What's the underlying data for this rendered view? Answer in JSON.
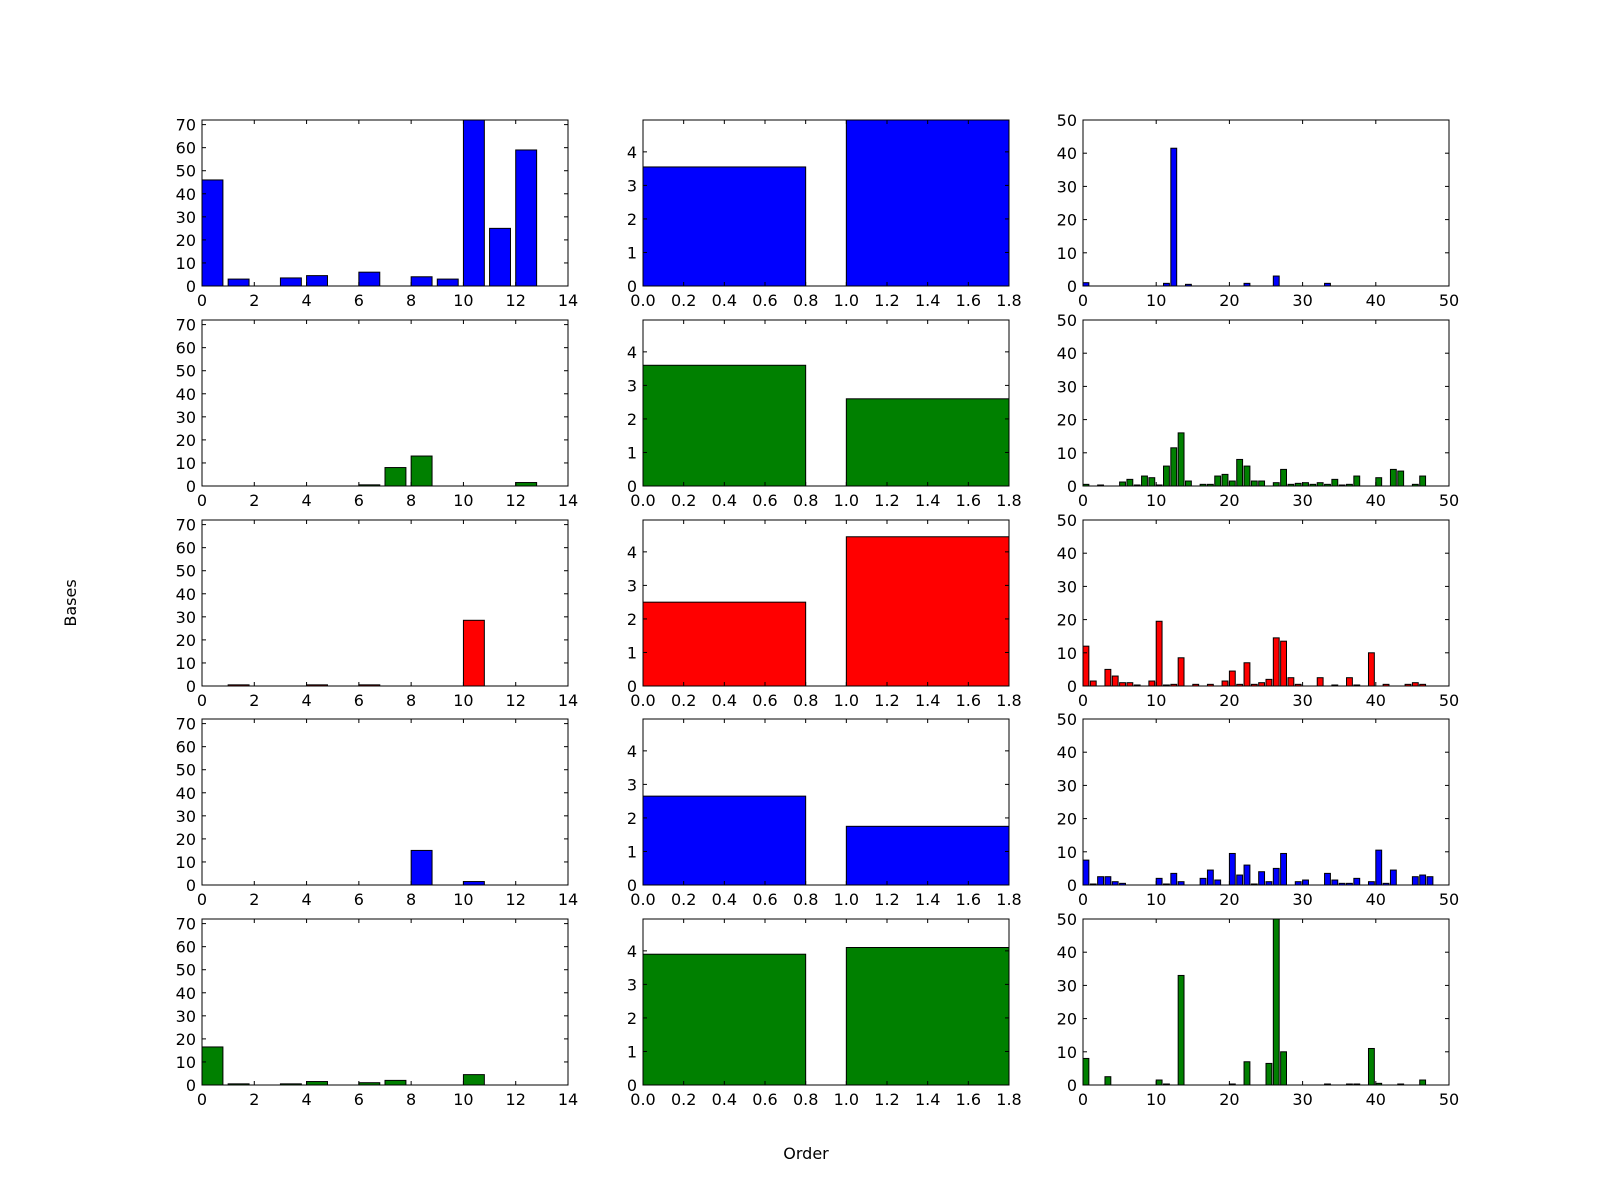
{
  "figure": {
    "xlabel": "Order",
    "ylabel": "Bases"
  },
  "colors": {
    "blue": "#0000ff",
    "green": "#008000",
    "red": "#ff0000",
    "edge": "#000000"
  },
  "chart_data": [
    {
      "type": "bar",
      "row": 0,
      "col": 0,
      "color": "#0000ff",
      "bar_width": 0.8,
      "xlim": [
        0,
        14
      ],
      "ylim": [
        0,
        72
      ],
      "xticks": [
        0,
        2,
        4,
        6,
        8,
        10,
        12,
        14
      ],
      "yticks": [
        0,
        10,
        20,
        30,
        40,
        50,
        60,
        70
      ],
      "x": [
        0,
        1,
        2,
        3,
        4,
        5,
        6,
        7,
        8,
        9,
        10,
        11,
        12
      ],
      "values": [
        46,
        3,
        0,
        3.5,
        4.5,
        0,
        6,
        0,
        4,
        3,
        72,
        25,
        59
      ]
    },
    {
      "type": "bar",
      "row": 0,
      "col": 1,
      "color": "#0000ff",
      "bar_width": 0.8,
      "xlim": [
        0,
        1.8
      ],
      "ylim": [
        0,
        4.95
      ],
      "xticks": [
        0.0,
        0.2,
        0.4,
        0.6,
        0.8,
        1.0,
        1.2,
        1.4,
        1.6,
        1.8
      ],
      "yticks": [
        0,
        1,
        2,
        3,
        4
      ],
      "x": [
        0,
        1
      ],
      "values": [
        3.55,
        4.95
      ]
    },
    {
      "type": "bar",
      "row": 0,
      "col": 2,
      "color": "#0000ff",
      "bar_width": 0.8,
      "xlim": [
        0,
        50
      ],
      "ylim": [
        0,
        50
      ],
      "xticks": [
        0,
        10,
        20,
        30,
        40,
        50
      ],
      "yticks": [
        0,
        10,
        20,
        30,
        40,
        50
      ],
      "x": [
        0,
        1,
        2,
        3,
        4,
        5,
        6,
        7,
        8,
        9,
        10,
        11,
        12,
        13,
        14,
        15,
        16,
        17,
        18,
        19,
        20,
        21,
        22,
        23,
        24,
        25,
        26,
        27,
        28,
        29,
        30,
        31,
        32,
        33,
        34,
        35,
        36,
        37,
        38,
        39,
        40,
        41,
        42,
        43,
        44,
        45,
        46,
        47
      ],
      "values": [
        1,
        0,
        0,
        0,
        0,
        0,
        0,
        0,
        0,
        0,
        0,
        0.8,
        41.5,
        0,
        0.5,
        0,
        0,
        0,
        0,
        0,
        0,
        0,
        0.8,
        0,
        0,
        0,
        3,
        0,
        0,
        0,
        0,
        0,
        0,
        0.8,
        0,
        0,
        0,
        0,
        0,
        0,
        0,
        0,
        0,
        0,
        0,
        0,
        0,
        0
      ]
    },
    {
      "type": "bar",
      "row": 1,
      "col": 0,
      "color": "#008000",
      "bar_width": 0.8,
      "xlim": [
        0,
        14
      ],
      "ylim": [
        0,
        72
      ],
      "xticks": [
        0,
        2,
        4,
        6,
        8,
        10,
        12,
        14
      ],
      "yticks": [
        0,
        10,
        20,
        30,
        40,
        50,
        60,
        70
      ],
      "x": [
        0,
        1,
        2,
        3,
        4,
        5,
        6,
        7,
        8,
        9,
        10,
        11,
        12
      ],
      "values": [
        0,
        0,
        0,
        0,
        0,
        0,
        0.5,
        8,
        13,
        0,
        0,
        0,
        1.5
      ]
    },
    {
      "type": "bar",
      "row": 1,
      "col": 1,
      "color": "#008000",
      "bar_width": 0.8,
      "xlim": [
        0,
        1.8
      ],
      "ylim": [
        0,
        4.95
      ],
      "xticks": [
        0.0,
        0.2,
        0.4,
        0.6,
        0.8,
        1.0,
        1.2,
        1.4,
        1.6,
        1.8
      ],
      "yticks": [
        0,
        1,
        2,
        3,
        4
      ],
      "x": [
        0,
        1
      ],
      "values": [
        3.6,
        2.6
      ]
    },
    {
      "type": "bar",
      "row": 1,
      "col": 2,
      "color": "#008000",
      "bar_width": 0.8,
      "xlim": [
        0,
        50
      ],
      "ylim": [
        0,
        50
      ],
      "xticks": [
        0,
        10,
        20,
        30,
        40,
        50
      ],
      "yticks": [
        0,
        10,
        20,
        30,
        40,
        50
      ],
      "x": [
        0,
        1,
        2,
        3,
        4,
        5,
        6,
        7,
        8,
        9,
        10,
        11,
        12,
        13,
        14,
        15,
        16,
        17,
        18,
        19,
        20,
        21,
        22,
        23,
        24,
        25,
        26,
        27,
        28,
        29,
        30,
        31,
        32,
        33,
        34,
        35,
        36,
        37,
        38,
        39,
        40,
        41,
        42,
        43,
        44,
        45,
        46,
        47
      ],
      "values": [
        0.5,
        0,
        0.3,
        0,
        0,
        1.2,
        2,
        0.3,
        3,
        2.5,
        0.3,
        6,
        11.5,
        16,
        1.5,
        0,
        0.5,
        0.5,
        3,
        3.5,
        1.5,
        8,
        6,
        1.5,
        1.5,
        0,
        1,
        5,
        0.5,
        0.8,
        1,
        0.5,
        1,
        0.5,
        2,
        0.3,
        0.5,
        3,
        0,
        0,
        2.5,
        0,
        5,
        4.5,
        0,
        0.5,
        3,
        0
      ]
    },
    {
      "type": "bar",
      "row": 2,
      "col": 0,
      "color": "#ff0000",
      "bar_width": 0.8,
      "xlim": [
        0,
        14
      ],
      "ylim": [
        0,
        72
      ],
      "xticks": [
        0,
        2,
        4,
        6,
        8,
        10,
        12,
        14
      ],
      "yticks": [
        0,
        10,
        20,
        30,
        40,
        50,
        60,
        70
      ],
      "x": [
        0,
        1,
        2,
        3,
        4,
        5,
        6,
        7,
        8,
        9,
        10,
        11,
        12
      ],
      "values": [
        0,
        0.5,
        0,
        0,
        0.5,
        0,
        0.5,
        0,
        0,
        0,
        28.5,
        0,
        0
      ]
    },
    {
      "type": "bar",
      "row": 2,
      "col": 1,
      "color": "#ff0000",
      "bar_width": 0.8,
      "xlim": [
        0,
        1.8
      ],
      "ylim": [
        0,
        4.95
      ],
      "xticks": [
        0.0,
        0.2,
        0.4,
        0.6,
        0.8,
        1.0,
        1.2,
        1.4,
        1.6,
        1.8
      ],
      "yticks": [
        0,
        1,
        2,
        3,
        4
      ],
      "x": [
        0,
        1
      ],
      "values": [
        2.5,
        4.45
      ]
    },
    {
      "type": "bar",
      "row": 2,
      "col": 2,
      "color": "#ff0000",
      "bar_width": 0.8,
      "xlim": [
        0,
        50
      ],
      "ylim": [
        0,
        50
      ],
      "xticks": [
        0,
        10,
        20,
        30,
        40,
        50
      ],
      "yticks": [
        0,
        10,
        20,
        30,
        40,
        50
      ],
      "x": [
        0,
        1,
        2,
        3,
        4,
        5,
        6,
        7,
        8,
        9,
        10,
        11,
        12,
        13,
        14,
        15,
        16,
        17,
        18,
        19,
        20,
        21,
        22,
        23,
        24,
        25,
        26,
        27,
        28,
        29,
        30,
        31,
        32,
        33,
        34,
        35,
        36,
        37,
        38,
        39,
        40,
        41,
        42,
        43,
        44,
        45,
        46,
        47
      ],
      "values": [
        12,
        1.5,
        0,
        5,
        3,
        1,
        1,
        0.3,
        0,
        1.5,
        19.5,
        0.3,
        0.5,
        8.5,
        0,
        0.5,
        0,
        0.5,
        0,
        1.5,
        4.5,
        0.5,
        7,
        0.5,
        1,
        2,
        14.5,
        13.5,
        2.5,
        0.5,
        0,
        0,
        2.5,
        0,
        0.3,
        0,
        2.5,
        0.3,
        0,
        10,
        0,
        0.5,
        0,
        0,
        0.5,
        1,
        0.5,
        0
      ]
    },
    {
      "type": "bar",
      "row": 3,
      "col": 0,
      "color": "#0000ff",
      "bar_width": 0.8,
      "xlim": [
        0,
        14
      ],
      "ylim": [
        0,
        72
      ],
      "xticks": [
        0,
        2,
        4,
        6,
        8,
        10,
        12,
        14
      ],
      "yticks": [
        0,
        10,
        20,
        30,
        40,
        50,
        60,
        70
      ],
      "x": [
        0,
        1,
        2,
        3,
        4,
        5,
        6,
        7,
        8,
        9,
        10,
        11,
        12
      ],
      "values": [
        0,
        0,
        0,
        0,
        0,
        0,
        0,
        0,
        15,
        0,
        1.5,
        0,
        0
      ]
    },
    {
      "type": "bar",
      "row": 3,
      "col": 1,
      "color": "#0000ff",
      "bar_width": 0.8,
      "xlim": [
        0,
        1.8
      ],
      "ylim": [
        0,
        4.95
      ],
      "xticks": [
        0.0,
        0.2,
        0.4,
        0.6,
        0.8,
        1.0,
        1.2,
        1.4,
        1.6,
        1.8
      ],
      "yticks": [
        0,
        1,
        2,
        3,
        4
      ],
      "x": [
        0,
        1
      ],
      "values": [
        2.65,
        1.75
      ]
    },
    {
      "type": "bar",
      "row": 3,
      "col": 2,
      "color": "#0000ff",
      "bar_width": 0.8,
      "xlim": [
        0,
        50
      ],
      "ylim": [
        0,
        50
      ],
      "xticks": [
        0,
        10,
        20,
        30,
        40,
        50
      ],
      "yticks": [
        0,
        10,
        20,
        30,
        40,
        50
      ],
      "x": [
        0,
        1,
        2,
        3,
        4,
        5,
        6,
        7,
        8,
        9,
        10,
        11,
        12,
        13,
        14,
        15,
        16,
        17,
        18,
        19,
        20,
        21,
        22,
        23,
        24,
        25,
        26,
        27,
        28,
        29,
        30,
        31,
        32,
        33,
        34,
        35,
        36,
        37,
        38,
        39,
        40,
        41,
        42,
        43,
        44,
        45,
        46,
        47
      ],
      "values": [
        7.5,
        0.3,
        2.5,
        2.5,
        1,
        0.5,
        0,
        0,
        0,
        0,
        2,
        0.3,
        3.5,
        1,
        0,
        0,
        2,
        4.5,
        1.5,
        0,
        9.5,
        3,
        6,
        0.3,
        4,
        1,
        5,
        9.5,
        0,
        1,
        1.5,
        0,
        0,
        3.5,
        1.5,
        0.5,
        0.5,
        2,
        0,
        1,
        10.5,
        0.5,
        4.5,
        0,
        0,
        2.5,
        3,
        2.5
      ]
    },
    {
      "type": "bar",
      "row": 4,
      "col": 0,
      "color": "#008000",
      "bar_width": 0.8,
      "xlim": [
        0,
        14
      ],
      "ylim": [
        0,
        72
      ],
      "xticks": [
        0,
        2,
        4,
        6,
        8,
        10,
        12,
        14
      ],
      "yticks": [
        0,
        10,
        20,
        30,
        40,
        50,
        60,
        70
      ],
      "x": [
        0,
        1,
        2,
        3,
        4,
        5,
        6,
        7,
        8,
        9,
        10,
        11,
        12
      ],
      "values": [
        16.5,
        0.5,
        0,
        0.5,
        1.5,
        0,
        1,
        2,
        0,
        0,
        4.5,
        0,
        0
      ]
    },
    {
      "type": "bar",
      "row": 4,
      "col": 1,
      "color": "#008000",
      "bar_width": 0.8,
      "xlim": [
        0,
        1.8
      ],
      "ylim": [
        0,
        4.95
      ],
      "xticks": [
        0.0,
        0.2,
        0.4,
        0.6,
        0.8,
        1.0,
        1.2,
        1.4,
        1.6,
        1.8
      ],
      "yticks": [
        0,
        1,
        2,
        3,
        4
      ],
      "x": [
        0,
        1
      ],
      "values": [
        3.9,
        4.1
      ]
    },
    {
      "type": "bar",
      "row": 4,
      "col": 2,
      "color": "#008000",
      "bar_width": 0.8,
      "xlim": [
        0,
        50
      ],
      "ylim": [
        0,
        50
      ],
      "xticks": [
        0,
        10,
        20,
        30,
        40,
        50
      ],
      "yticks": [
        0,
        10,
        20,
        30,
        40,
        50
      ],
      "x": [
        0,
        1,
        2,
        3,
        4,
        5,
        6,
        7,
        8,
        9,
        10,
        11,
        12,
        13,
        14,
        15,
        16,
        17,
        18,
        19,
        20,
        21,
        22,
        23,
        24,
        25,
        26,
        27,
        28,
        29,
        30,
        31,
        32,
        33,
        34,
        35,
        36,
        37,
        38,
        39,
        40,
        41,
        42,
        43,
        44,
        45,
        46,
        47
      ],
      "values": [
        8,
        0,
        0,
        2.5,
        0,
        0,
        0,
        0,
        0,
        0,
        1.5,
        0.3,
        0,
        33,
        0,
        0,
        0,
        0,
        0,
        0,
        0.3,
        0,
        7,
        0,
        0,
        6.5,
        50,
        10,
        0,
        0,
        0,
        0,
        0,
        0.3,
        0,
        0,
        0.3,
        0.3,
        0,
        11,
        0.5,
        0,
        0,
        0.3,
        0,
        0,
        1.5,
        0
      ]
    }
  ]
}
